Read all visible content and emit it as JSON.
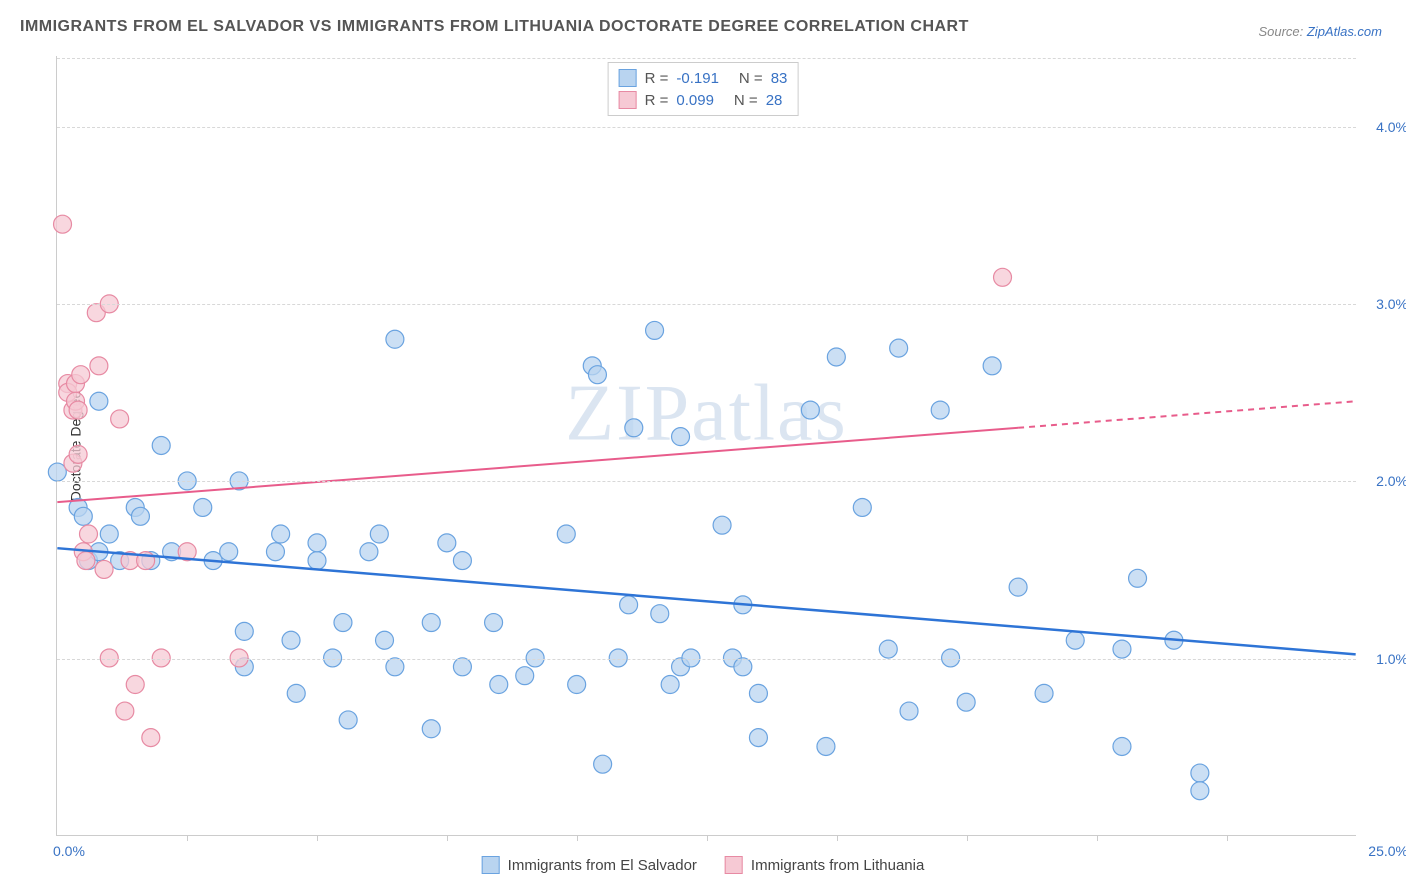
{
  "title": "IMMIGRANTS FROM EL SALVADOR VS IMMIGRANTS FROM LITHUANIA DOCTORATE DEGREE CORRELATION CHART",
  "source_prefix": "Source: ",
  "source_link": "ZipAtlas.com",
  "y_axis_label": "Doctorate Degree",
  "watermark": "ZIPatlas",
  "chart": {
    "type": "scatter",
    "xlim": [
      0,
      25
    ],
    "ylim": [
      0,
      4.4
    ],
    "x_ticks": [
      0.0,
      25.0
    ],
    "x_tick_labels": [
      "0.0%",
      "25.0%"
    ],
    "x_minor_ticks": [
      2.5,
      5.0,
      7.5,
      10.0,
      12.5,
      15.0,
      17.5,
      20.0,
      22.5
    ],
    "y_gridlines": [
      1.0,
      2.0,
      3.0,
      4.0
    ],
    "y_tick_labels": [
      "1.0%",
      "2.0%",
      "3.0%",
      "4.0%"
    ],
    "background_color": "#ffffff",
    "grid_color": "#d8d8d8",
    "axis_color": "#cccccc"
  },
  "series": [
    {
      "name": "Immigrants from El Salvador",
      "marker_fill": "#b9d4f0",
      "marker_stroke": "#6aa3e0",
      "marker_radius": 9,
      "line_color": "#2e74d6",
      "line_width": 2.5,
      "R": "-0.191",
      "N": "83",
      "trend": {
        "x1": 0,
        "y1": 1.62,
        "x2": 25,
        "y2": 1.02
      },
      "points": [
        [
          0.0,
          2.05
        ],
        [
          0.4,
          1.85
        ],
        [
          0.5,
          1.8
        ],
        [
          0.6,
          1.55
        ],
        [
          0.8,
          2.45
        ],
        [
          0.8,
          1.6
        ],
        [
          1.0,
          1.7
        ],
        [
          1.2,
          1.55
        ],
        [
          1.5,
          1.85
        ],
        [
          1.6,
          1.8
        ],
        [
          1.8,
          1.55
        ],
        [
          2.0,
          2.2
        ],
        [
          2.2,
          1.6
        ],
        [
          2.5,
          2.0
        ],
        [
          2.8,
          1.85
        ],
        [
          3.0,
          1.55
        ],
        [
          3.3,
          1.6
        ],
        [
          3.5,
          2.0
        ],
        [
          3.6,
          1.15
        ],
        [
          3.6,
          0.95
        ],
        [
          4.2,
          1.6
        ],
        [
          4.3,
          1.7
        ],
        [
          4.5,
          1.1
        ],
        [
          4.6,
          0.8
        ],
        [
          5.0,
          1.55
        ],
        [
          5.0,
          1.65
        ],
        [
          5.3,
          1.0
        ],
        [
          5.5,
          1.2
        ],
        [
          5.6,
          0.65
        ],
        [
          6.0,
          1.6
        ],
        [
          6.2,
          1.7
        ],
        [
          6.3,
          1.1
        ],
        [
          6.5,
          2.8
        ],
        [
          6.5,
          0.95
        ],
        [
          7.2,
          1.2
        ],
        [
          7.2,
          0.6
        ],
        [
          7.5,
          1.65
        ],
        [
          7.8,
          1.55
        ],
        [
          7.8,
          0.95
        ],
        [
          8.4,
          1.2
        ],
        [
          8.5,
          0.85
        ],
        [
          9.0,
          0.9
        ],
        [
          9.2,
          1.0
        ],
        [
          9.8,
          1.7
        ],
        [
          10.0,
          0.85
        ],
        [
          10.3,
          2.65
        ],
        [
          10.4,
          2.6
        ],
        [
          10.5,
          0.4
        ],
        [
          10.8,
          1.0
        ],
        [
          11.0,
          1.3
        ],
        [
          11.1,
          2.3
        ],
        [
          11.5,
          2.85
        ],
        [
          11.6,
          1.25
        ],
        [
          11.8,
          0.85
        ],
        [
          12.0,
          0.95
        ],
        [
          12.0,
          2.25
        ],
        [
          12.2,
          1.0
        ],
        [
          12.8,
          1.75
        ],
        [
          13.0,
          1.0
        ],
        [
          13.2,
          1.3
        ],
        [
          13.2,
          0.95
        ],
        [
          13.5,
          0.8
        ],
        [
          13.5,
          0.55
        ],
        [
          14.5,
          2.4
        ],
        [
          14.8,
          0.5
        ],
        [
          15.0,
          2.7
        ],
        [
          15.5,
          1.85
        ],
        [
          16.0,
          1.05
        ],
        [
          16.2,
          2.75
        ],
        [
          16.4,
          0.7
        ],
        [
          17.0,
          2.4
        ],
        [
          17.2,
          1.0
        ],
        [
          17.5,
          0.75
        ],
        [
          18.0,
          2.65
        ],
        [
          18.5,
          1.4
        ],
        [
          19.0,
          0.8
        ],
        [
          19.6,
          1.1
        ],
        [
          20.5,
          1.05
        ],
        [
          20.5,
          0.5
        ],
        [
          20.8,
          1.45
        ],
        [
          21.5,
          1.1
        ],
        [
          22.0,
          0.35
        ],
        [
          22.0,
          0.25
        ]
      ]
    },
    {
      "name": "Immigrants from Lithuania",
      "marker_fill": "#f6c9d4",
      "marker_stroke": "#e78aa3",
      "marker_radius": 9,
      "line_color": "#e85c8b",
      "line_width": 2,
      "R": "0.099",
      "N": "28",
      "trend": {
        "x1": 0,
        "y1": 1.88,
        "x2": 18.5,
        "y2": 2.3
      },
      "trend_ext": {
        "x1": 18.5,
        "y1": 2.3,
        "x2": 25,
        "y2": 2.45
      },
      "points": [
        [
          0.1,
          3.45
        ],
        [
          0.2,
          2.55
        ],
        [
          0.2,
          2.5
        ],
        [
          0.3,
          2.1
        ],
        [
          0.3,
          2.4
        ],
        [
          0.35,
          2.55
        ],
        [
          0.35,
          2.45
        ],
        [
          0.4,
          2.4
        ],
        [
          0.4,
          2.15
        ],
        [
          0.45,
          2.6
        ],
        [
          0.5,
          1.6
        ],
        [
          0.55,
          1.55
        ],
        [
          0.6,
          1.7
        ],
        [
          0.75,
          2.95
        ],
        [
          0.8,
          2.65
        ],
        [
          0.9,
          1.5
        ],
        [
          1.0,
          3.0
        ],
        [
          1.0,
          1.0
        ],
        [
          1.2,
          2.35
        ],
        [
          1.3,
          0.7
        ],
        [
          1.4,
          1.55
        ],
        [
          1.5,
          0.85
        ],
        [
          1.7,
          1.55
        ],
        [
          1.8,
          0.55
        ],
        [
          2.0,
          1.0
        ],
        [
          2.5,
          1.6
        ],
        [
          3.5,
          1.0
        ],
        [
          18.2,
          3.15
        ]
      ]
    }
  ],
  "legend_top": {
    "r_label": "R =",
    "n_label": "N ="
  },
  "legend_bottom": {
    "items": [
      "Immigrants from El Salvador",
      "Immigrants from Lithuania"
    ]
  }
}
